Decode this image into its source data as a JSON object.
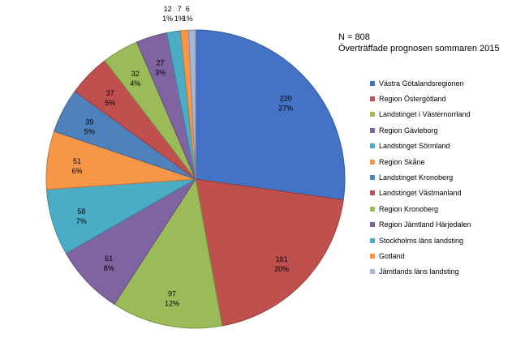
{
  "annotations": {
    "n_label": "N = 808",
    "subtitle": "Överträffade prognosen sommaren 2015"
  },
  "chart_data": {
    "type": "pie",
    "title": "",
    "legend_position": "right",
    "slices": [
      {
        "label": "Västra Götalandsregionen",
        "value": 220,
        "percent_label": "27%",
        "color": "#4472C4"
      },
      {
        "label": "Region Östergötland",
        "value": 161,
        "percent_label": "20%",
        "color": "#C0504D"
      },
      {
        "label": "Landstinget i Västernorrland",
        "value": 97,
        "percent_label": "12%",
        "color": "#9BBB59"
      },
      {
        "label": "Region Gävleborg",
        "value": 61,
        "percent_label": "8%",
        "color": "#8064A2"
      },
      {
        "label": "Landstinget Sörmland",
        "value": 58,
        "percent_label": "7%",
        "color": "#4BACC6"
      },
      {
        "label": "Region Skåne",
        "value": 51,
        "percent_label": "6%",
        "color": "#F79646"
      },
      {
        "label": "Landstinget Kronoberg",
        "value": 39,
        "percent_label": "5%",
        "color": "#4F81BD"
      },
      {
        "label": "Landstinget Västmanland",
        "value": 37,
        "percent_label": "5%",
        "color": "#C0504D"
      },
      {
        "label": "Region Kronoberg",
        "value": 32,
        "percent_label": "4%",
        "color": "#9BBB59"
      },
      {
        "label": "Region Jämtland Härjedalen",
        "value": 27,
        "percent_label": "3%",
        "color": "#8064A2"
      },
      {
        "label": "Stockholms läns landsting",
        "value": 12,
        "percent_label": "1%",
        "color": "#4BACC6"
      },
      {
        "label": "Gotland",
        "value": 7,
        "percent_label": "1%",
        "color": "#F79646"
      },
      {
        "label": "Jämtlands läns landsting",
        "value": 6,
        "percent_label": "1%",
        "color": "#A5B6D8"
      }
    ]
  }
}
